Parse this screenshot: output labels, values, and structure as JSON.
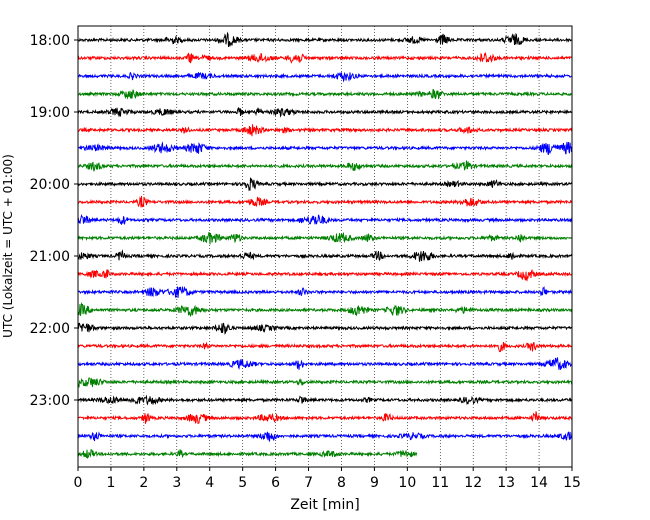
{
  "chart_data": {
    "type": "line",
    "title": "",
    "xlabel": "Zeit  [min]",
    "ylabel": "UTC (Lokalzeit = UTC + 01:00)",
    "xlim": [
      0,
      15
    ],
    "x_ticks": [
      "0",
      "1",
      "2",
      "3",
      "4",
      "5",
      "6",
      "7",
      "8",
      "9",
      "10",
      "11",
      "12",
      "13",
      "14",
      "15"
    ],
    "y_tick_labels": [
      "18:00",
      "19:00",
      "20:00",
      "21:00",
      "22:00",
      "23:00"
    ],
    "grid": "vertical dotted at each minute",
    "row_minutes": 15,
    "color_cycle": [
      "#000000",
      "#ff0000",
      "#0000ff",
      "#008000"
    ],
    "traces": [
      {
        "start": "18:00",
        "end_min": 15,
        "color": "#000000"
      },
      {
        "start": "18:15",
        "end_min": 15,
        "color": "#ff0000"
      },
      {
        "start": "18:30",
        "end_min": 15,
        "color": "#0000ff"
      },
      {
        "start": "18:45",
        "end_min": 15,
        "color": "#008000"
      },
      {
        "start": "19:00",
        "end_min": 15,
        "color": "#000000"
      },
      {
        "start": "19:15",
        "end_min": 15,
        "color": "#ff0000"
      },
      {
        "start": "19:30",
        "end_min": 15,
        "color": "#0000ff"
      },
      {
        "start": "19:45",
        "end_min": 15,
        "color": "#008000"
      },
      {
        "start": "20:00",
        "end_min": 15,
        "color": "#000000"
      },
      {
        "start": "20:15",
        "end_min": 15,
        "color": "#ff0000"
      },
      {
        "start": "20:30",
        "end_min": 15,
        "color": "#0000ff"
      },
      {
        "start": "20:45",
        "end_min": 15,
        "color": "#008000"
      },
      {
        "start": "21:00",
        "end_min": 15,
        "color": "#000000"
      },
      {
        "start": "21:15",
        "end_min": 15,
        "color": "#ff0000"
      },
      {
        "start": "21:30",
        "end_min": 15,
        "color": "#0000ff"
      },
      {
        "start": "21:45",
        "end_min": 15,
        "color": "#008000"
      },
      {
        "start": "22:00",
        "end_min": 15,
        "color": "#000000"
      },
      {
        "start": "22:15",
        "end_min": 15,
        "color": "#ff0000"
      },
      {
        "start": "22:30",
        "end_min": 15,
        "color": "#0000ff"
      },
      {
        "start": "22:45",
        "end_min": 15,
        "color": "#008000"
      },
      {
        "start": "23:00",
        "end_min": 15,
        "color": "#000000"
      },
      {
        "start": "23:15",
        "end_min": 15,
        "color": "#ff0000"
      },
      {
        "start": "23:30",
        "end_min": 15,
        "color": "#0000ff"
      },
      {
        "start": "23:45",
        "end_min": 10.3,
        "color": "#008000"
      }
    ]
  }
}
